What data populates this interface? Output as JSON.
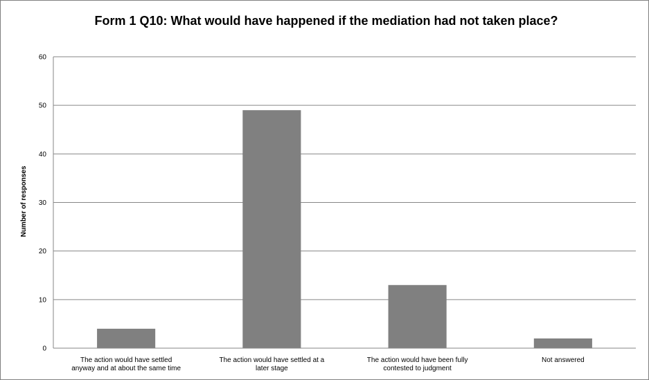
{
  "chart_data": {
    "type": "bar",
    "title": "Form 1 Q10: What would have happened if the mediation had not taken place?",
    "xlabel": "",
    "ylabel": "Number of responses",
    "ylim": [
      0,
      60
    ],
    "yticks": [
      0,
      10,
      20,
      30,
      40,
      50,
      60
    ],
    "grid": true,
    "legend": "none",
    "bar_color": "#808080",
    "categories": [
      [
        "The action would have settled",
        "anyway and at about the same time"
      ],
      [
        "The action would have settled at a",
        "later stage"
      ],
      [
        "The action would have been fully",
        "contested to judgment"
      ],
      [
        "Not answered"
      ]
    ],
    "values": [
      4,
      49,
      13,
      2
    ]
  }
}
